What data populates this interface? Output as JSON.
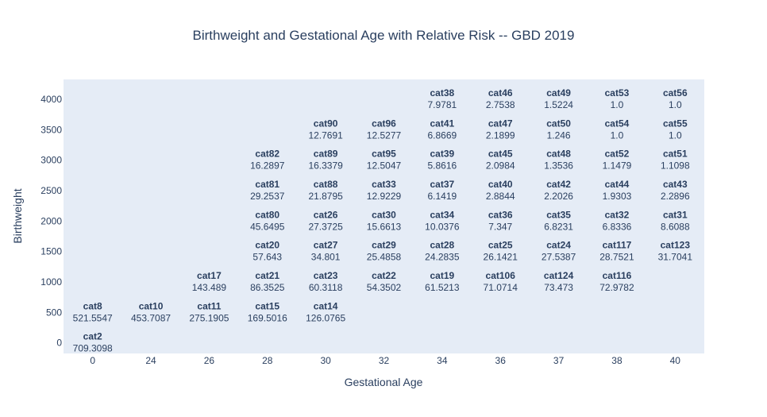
{
  "chart_data": {
    "type": "table",
    "title": "Birthweight and Gestational Age with Relative Risk -- GBD 2019",
    "xlabel": "Gestational Age",
    "ylabel": "Birthweight",
    "x_categories": [
      "0",
      "24",
      "26",
      "28",
      "30",
      "32",
      "34",
      "36",
      "37",
      "38",
      "40"
    ],
    "y_ticks": [
      0,
      500,
      1000,
      1500,
      2000,
      2500,
      3000,
      3500,
      4000
    ],
    "ylim": [
      -175,
      4325
    ],
    "grid": false,
    "background_color": "#e5ecf6",
    "cells": [
      {
        "x": "0",
        "y": 0,
        "cat": "cat2",
        "rr": "709.3098"
      },
      {
        "x": "0",
        "y": 500,
        "cat": "cat8",
        "rr": "521.5547"
      },
      {
        "x": "24",
        "y": 500,
        "cat": "cat10",
        "rr": "453.7087"
      },
      {
        "x": "26",
        "y": 500,
        "cat": "cat11",
        "rr": "275.1905"
      },
      {
        "x": "28",
        "y": 500,
        "cat": "cat15",
        "rr": "169.5016"
      },
      {
        "x": "30",
        "y": 500,
        "cat": "cat14",
        "rr": "126.0765"
      },
      {
        "x": "26",
        "y": 1000,
        "cat": "cat17",
        "rr": "143.489"
      },
      {
        "x": "28",
        "y": 1000,
        "cat": "cat21",
        "rr": "86.3525"
      },
      {
        "x": "30",
        "y": 1000,
        "cat": "cat23",
        "rr": "60.3118"
      },
      {
        "x": "32",
        "y": 1000,
        "cat": "cat22",
        "rr": "54.3502"
      },
      {
        "x": "34",
        "y": 1000,
        "cat": "cat19",
        "rr": "61.5213"
      },
      {
        "x": "36",
        "y": 1000,
        "cat": "cat106",
        "rr": "71.0714"
      },
      {
        "x": "37",
        "y": 1000,
        "cat": "cat124",
        "rr": "73.473"
      },
      {
        "x": "38",
        "y": 1000,
        "cat": "cat116",
        "rr": "72.9782"
      },
      {
        "x": "28",
        "y": 1500,
        "cat": "cat20",
        "rr": "57.643"
      },
      {
        "x": "30",
        "y": 1500,
        "cat": "cat27",
        "rr": "34.801"
      },
      {
        "x": "32",
        "y": 1500,
        "cat": "cat29",
        "rr": "25.4858"
      },
      {
        "x": "34",
        "y": 1500,
        "cat": "cat28",
        "rr": "24.2835"
      },
      {
        "x": "36",
        "y": 1500,
        "cat": "cat25",
        "rr": "26.1421"
      },
      {
        "x": "37",
        "y": 1500,
        "cat": "cat24",
        "rr": "27.5387"
      },
      {
        "x": "38",
        "y": 1500,
        "cat": "cat117",
        "rr": "28.7521"
      },
      {
        "x": "40",
        "y": 1500,
        "cat": "cat123",
        "rr": "31.7041"
      },
      {
        "x": "28",
        "y": 2000,
        "cat": "cat80",
        "rr": "45.6495"
      },
      {
        "x": "30",
        "y": 2000,
        "cat": "cat26",
        "rr": "27.3725"
      },
      {
        "x": "32",
        "y": 2000,
        "cat": "cat30",
        "rr": "15.6613"
      },
      {
        "x": "34",
        "y": 2000,
        "cat": "cat34",
        "rr": "10.0376"
      },
      {
        "x": "36",
        "y": 2000,
        "cat": "cat36",
        "rr": "7.347"
      },
      {
        "x": "37",
        "y": 2000,
        "cat": "cat35",
        "rr": "6.8231"
      },
      {
        "x": "38",
        "y": 2000,
        "cat": "cat32",
        "rr": "6.8336"
      },
      {
        "x": "40",
        "y": 2000,
        "cat": "cat31",
        "rr": "8.6088"
      },
      {
        "x": "28",
        "y": 2500,
        "cat": "cat81",
        "rr": "29.2537"
      },
      {
        "x": "30",
        "y": 2500,
        "cat": "cat88",
        "rr": "21.8795"
      },
      {
        "x": "32",
        "y": 2500,
        "cat": "cat33",
        "rr": "12.9229"
      },
      {
        "x": "34",
        "y": 2500,
        "cat": "cat37",
        "rr": "6.1419"
      },
      {
        "x": "36",
        "y": 2500,
        "cat": "cat40",
        "rr": "2.8844"
      },
      {
        "x": "37",
        "y": 2500,
        "cat": "cat42",
        "rr": "2.2026"
      },
      {
        "x": "38",
        "y": 2500,
        "cat": "cat44",
        "rr": "1.9303"
      },
      {
        "x": "40",
        "y": 2500,
        "cat": "cat43",
        "rr": "2.2896"
      },
      {
        "x": "28",
        "y": 3000,
        "cat": "cat82",
        "rr": "16.2897"
      },
      {
        "x": "30",
        "y": 3000,
        "cat": "cat89",
        "rr": "16.3379"
      },
      {
        "x": "32",
        "y": 3000,
        "cat": "cat95",
        "rr": "12.5047"
      },
      {
        "x": "34",
        "y": 3000,
        "cat": "cat39",
        "rr": "5.8616"
      },
      {
        "x": "36",
        "y": 3000,
        "cat": "cat45",
        "rr": "2.0984"
      },
      {
        "x": "37",
        "y": 3000,
        "cat": "cat48",
        "rr": "1.3536"
      },
      {
        "x": "38",
        "y": 3000,
        "cat": "cat52",
        "rr": "1.1479"
      },
      {
        "x": "40",
        "y": 3000,
        "cat": "cat51",
        "rr": "1.1098"
      },
      {
        "x": "30",
        "y": 3500,
        "cat": "cat90",
        "rr": "12.7691"
      },
      {
        "x": "32",
        "y": 3500,
        "cat": "cat96",
        "rr": "12.5277"
      },
      {
        "x": "34",
        "y": 3500,
        "cat": "cat41",
        "rr": "6.8669"
      },
      {
        "x": "36",
        "y": 3500,
        "cat": "cat47",
        "rr": "2.1899"
      },
      {
        "x": "37",
        "y": 3500,
        "cat": "cat50",
        "rr": "1.246"
      },
      {
        "x": "38",
        "y": 3500,
        "cat": "cat54",
        "rr": "1.0"
      },
      {
        "x": "40",
        "y": 3500,
        "cat": "cat55",
        "rr": "1.0"
      },
      {
        "x": "34",
        "y": 4000,
        "cat": "cat38",
        "rr": "7.9781"
      },
      {
        "x": "36",
        "y": 4000,
        "cat": "cat46",
        "rr": "2.7538"
      },
      {
        "x": "37",
        "y": 4000,
        "cat": "cat49",
        "rr": "1.5224"
      },
      {
        "x": "38",
        "y": 4000,
        "cat": "cat53",
        "rr": "1.0"
      },
      {
        "x": "40",
        "y": 4000,
        "cat": "cat56",
        "rr": "1.0"
      }
    ]
  }
}
